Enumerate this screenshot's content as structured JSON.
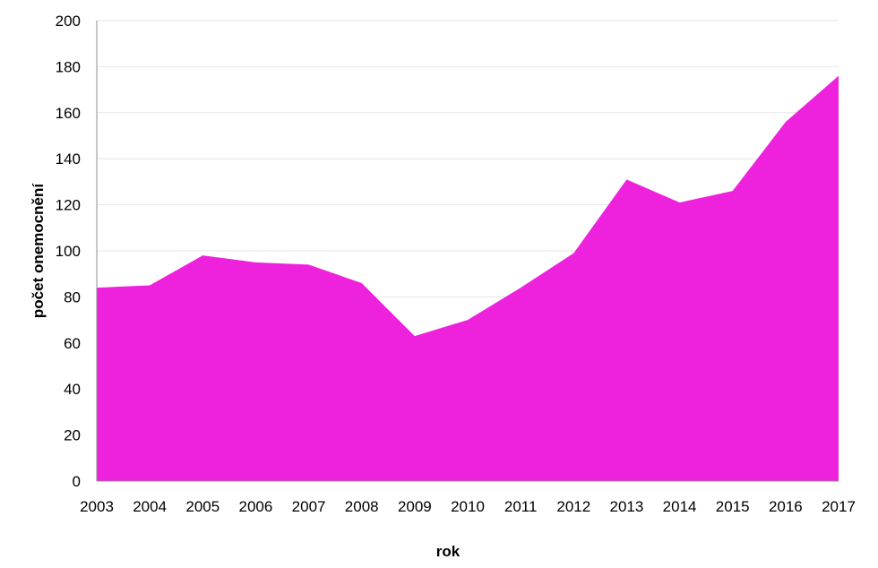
{
  "chart_data": {
    "type": "area",
    "title": "",
    "xlabel": "rok",
    "ylabel": "počet onemocnění",
    "categories": [
      "2003",
      "2004",
      "2005",
      "2006",
      "2007",
      "2008",
      "2009",
      "2010",
      "2011",
      "2012",
      "2013",
      "2014",
      "2015",
      "2016",
      "2017"
    ],
    "series": [
      {
        "name": "počet onemocnění",
        "values": [
          84,
          85,
          98,
          95,
          94,
          86,
          63,
          70,
          84,
          99,
          131,
          121,
          126,
          156,
          176
        ],
        "color": "#ee22dd"
      }
    ],
    "ylim": [
      0,
      200
    ],
    "yticks": [
      0,
      20,
      40,
      60,
      80,
      100,
      120,
      140,
      160,
      180,
      200
    ],
    "grid": true,
    "legend": "none"
  }
}
